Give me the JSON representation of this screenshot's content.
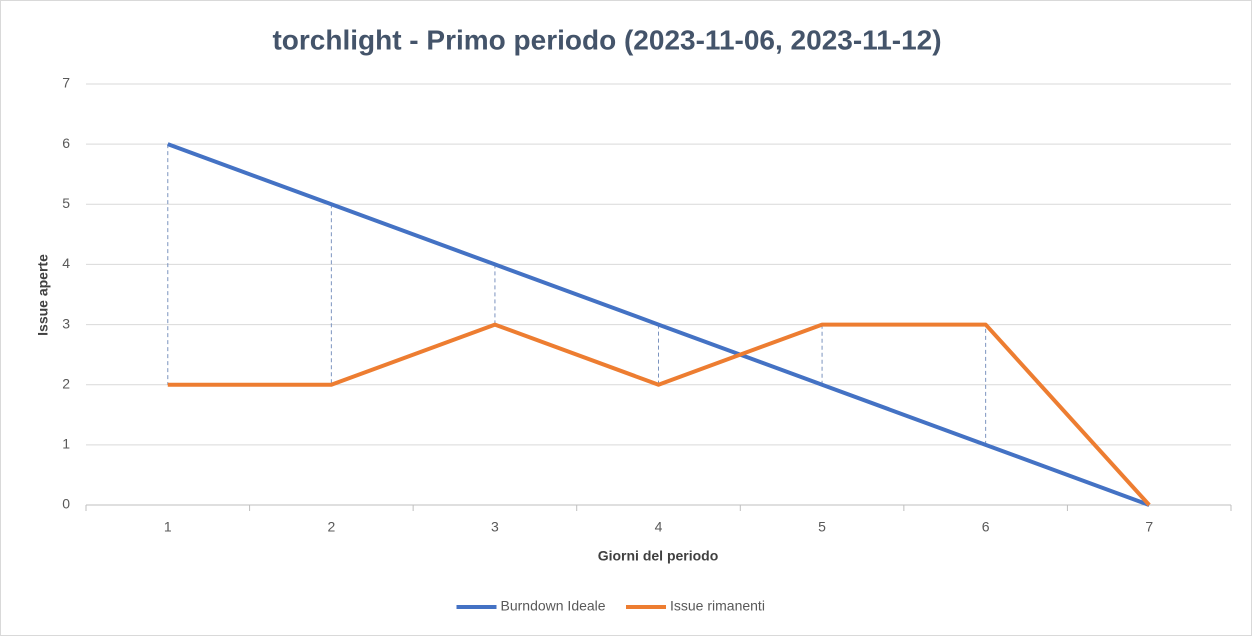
{
  "chart_data": {
    "type": "line",
    "title": "torchlight - Primo periodo (2023-11-06, 2023-11-12)",
    "x_label": "Giorni del periodo",
    "y_label": "Issue aperte",
    "categories": [
      "1",
      "2",
      "3",
      "4",
      "5",
      "6",
      "7"
    ],
    "series": [
      {
        "name": "Burndown Ideale",
        "color": "#4472c4",
        "values": [
          6,
          5,
          4,
          3,
          2,
          1,
          0
        ]
      },
      {
        "name": "Issue rimanenti",
        "color": "#ed7d31",
        "values": [
          2,
          2,
          3,
          2,
          3,
          3,
          0
        ]
      }
    ],
    "ylim": [
      0,
      7
    ],
    "yticks": [
      0,
      1,
      2,
      3,
      4,
      5,
      6,
      7
    ],
    "grid": true,
    "drop_lines": true,
    "legend": "bottom"
  }
}
